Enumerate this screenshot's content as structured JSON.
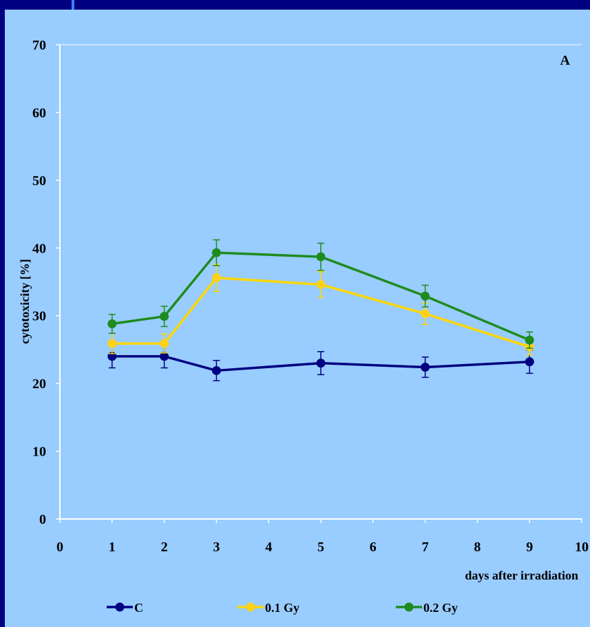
{
  "chart_data": {
    "type": "line",
    "panel_label": "A",
    "xlabel": "days after irradiation",
    "ylabel": "cytotoxicity [%]",
    "xlim": [
      0,
      10
    ],
    "ylim": [
      0,
      70
    ],
    "xticks": [
      "0",
      "1",
      "2",
      "3",
      "4",
      "5",
      "6",
      "7",
      "8",
      "9",
      "10"
    ],
    "yticks": [
      "0",
      "10",
      "20",
      "30",
      "40",
      "50",
      "60",
      "70"
    ],
    "grid": false,
    "legend_position": "bottom",
    "x": [
      1,
      2,
      3,
      5,
      7,
      9
    ],
    "series": [
      {
        "name": "C",
        "color": "#000080",
        "marker_color": "#000080",
        "values": [
          24.0,
          24.0,
          21.9,
          23.0,
          22.4,
          23.2
        ],
        "errors": [
          1.7,
          1.7,
          1.5,
          1.7,
          1.5,
          1.7
        ]
      },
      {
        "name": "0.1 Gy",
        "color": "#ffd700",
        "marker_color": "#ffd21a",
        "values": [
          25.9,
          25.9,
          35.6,
          34.6,
          30.3,
          25.4
        ],
        "errors": [
          1.5,
          1.4,
          2.0,
          1.9,
          1.6,
          1.2
        ]
      },
      {
        "name": "0.2 Gy",
        "color": "#1e8b1e",
        "marker_color": "#1e8b1e",
        "values": [
          28.8,
          29.9,
          39.3,
          38.7,
          32.9,
          26.4
        ],
        "errors": [
          1.4,
          1.5,
          1.9,
          2.0,
          1.6,
          1.2
        ]
      }
    ]
  }
}
